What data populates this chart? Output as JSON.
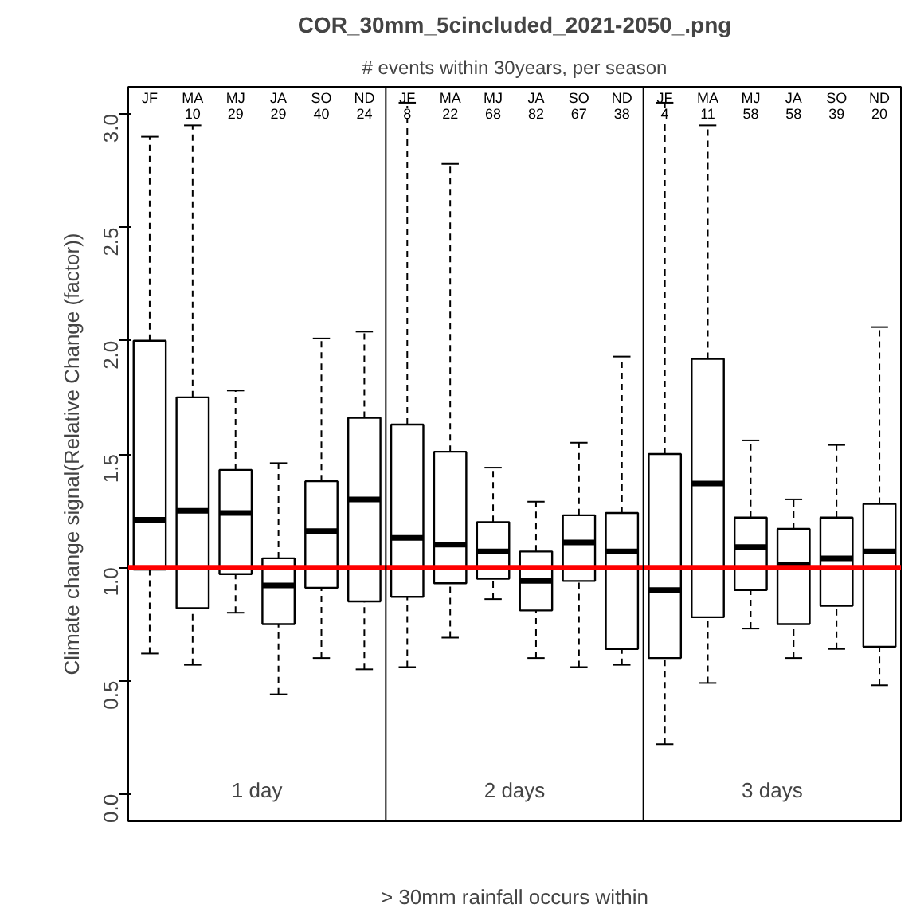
{
  "chart_data": {
    "type": "box",
    "title": "COR_30mm_5cincluded_2021-2050_.png",
    "subtitle": "# events within 30years, per season",
    "xlabel": "> 30mm rainfall occurs within",
    "ylabel": "Climate change signal(Relative Change (factor))",
    "categories": [
      "JF",
      "MA",
      "MJ",
      "JA",
      "SO",
      "ND",
      "JF",
      "MA",
      "MJ",
      "JA",
      "SO",
      "ND",
      "JF",
      "MA",
      "MJ",
      "JA",
      "SO",
      "ND"
    ],
    "value_labels": [
      null,
      "10",
      "29",
      "29",
      "40",
      "24",
      "8",
      "22",
      "68",
      "82",
      "67",
      "38",
      "4",
      "11",
      "58",
      "58",
      "39",
      "20"
    ],
    "annotations": [
      "1 day",
      "2 days",
      "3 days"
    ],
    "boxes": [
      {
        "low": 0.62,
        "q1": 0.99,
        "median": 1.21,
        "q3": 2.0,
        "high": 2.9
      },
      {
        "low": 0.57,
        "q1": 0.82,
        "median": 1.25,
        "q3": 1.75,
        "high": 2.95
      },
      {
        "low": 0.8,
        "q1": 0.97,
        "median": 1.24,
        "q3": 1.43,
        "high": 1.78
      },
      {
        "low": 0.44,
        "q1": 0.75,
        "median": 0.92,
        "q3": 1.04,
        "high": 1.46
      },
      {
        "low": 0.6,
        "q1": 0.91,
        "median": 1.16,
        "q3": 1.38,
        "high": 2.01
      },
      {
        "low": 0.55,
        "q1": 0.85,
        "median": 1.3,
        "q3": 1.66,
        "high": 2.04
      },
      {
        "low": 0.56,
        "q1": 0.87,
        "median": 1.13,
        "q3": 1.63,
        "high": 3.05
      },
      {
        "low": 0.69,
        "q1": 0.93,
        "median": 1.1,
        "q3": 1.51,
        "high": 2.78
      },
      {
        "low": 0.86,
        "q1": 0.95,
        "median": 1.07,
        "q3": 1.2,
        "high": 1.44
      },
      {
        "low": 0.6,
        "q1": 0.81,
        "median": 0.94,
        "q3": 1.07,
        "high": 1.29
      },
      {
        "low": 0.56,
        "q1": 0.94,
        "median": 1.11,
        "q3": 1.23,
        "high": 1.55
      },
      {
        "low": 0.57,
        "q1": 0.64,
        "median": 1.07,
        "q3": 1.24,
        "high": 1.93
      },
      {
        "low": 0.22,
        "q1": 0.6,
        "median": 0.9,
        "q3": 1.5,
        "high": 3.05
      },
      {
        "low": 0.49,
        "q1": 0.78,
        "median": 1.37,
        "q3": 1.92,
        "high": 2.95
      },
      {
        "low": 0.73,
        "q1": 0.9,
        "median": 1.09,
        "q3": 1.22,
        "high": 1.56
      },
      {
        "low": 0.6,
        "q1": 0.75,
        "median": 1.01,
        "q3": 1.17,
        "high": 1.3
      },
      {
        "low": 0.64,
        "q1": 0.83,
        "median": 1.04,
        "q3": 1.22,
        "high": 1.54
      },
      {
        "low": 0.48,
        "q1": 0.65,
        "median": 1.07,
        "q3": 1.28,
        "high": 2.06
      }
    ],
    "ylim": [
      -0.12,
      3.12
    ],
    "yticks": [
      {
        "value": 0,
        "label": "0.0"
      },
      {
        "value": 0.5,
        "label": "0.5"
      },
      {
        "value": 1,
        "label": "1.0"
      },
      {
        "value": 1.5,
        "label": "1.5"
      },
      {
        "value": 2,
        "label": "2.0"
      },
      {
        "value": 2.5,
        "label": "2.5"
      },
      {
        "value": 3,
        "label": "3.0"
      }
    ],
    "ref_lines": [
      {
        "axis": "y",
        "value": 1.0,
        "color": "#ff0000"
      }
    ],
    "tick_labels": "y",
    "grid": false
  }
}
